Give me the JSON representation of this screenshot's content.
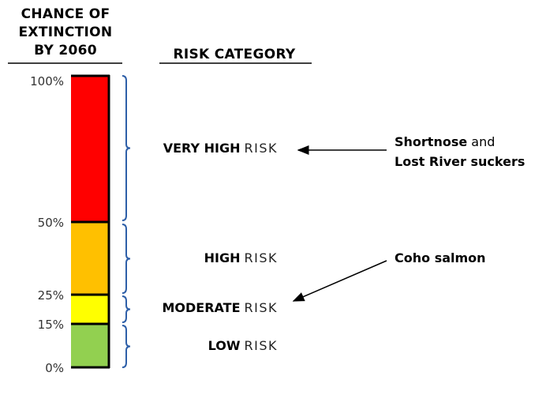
{
  "left_header": [
    "CHANCE OF",
    "EXTINCTION",
    "BY 2060"
  ],
  "right_header": "RISK CATEGORY",
  "ticks": [
    "100%",
    "50%",
    "25%",
    "15%",
    "0%"
  ],
  "segments": [
    {
      "from": 50,
      "to": 100,
      "color": "#FF0000",
      "category_bold": "VERY HIGH",
      "category_light": "RISK"
    },
    {
      "from": 25,
      "to": 50,
      "color": "#FFC000",
      "category_bold": "HIGH",
      "category_light": "RISK"
    },
    {
      "from": 15,
      "to": 25,
      "color": "#FFFF00",
      "category_bold": "MODERATE",
      "category_light": "RISK"
    },
    {
      "from": 0,
      "to": 15,
      "color": "#92D050",
      "category_bold": "LOW",
      "category_light": "RISK"
    }
  ],
  "brace_color": "#2E5FA8",
  "annotations": [
    {
      "line1_bold": "Shortnose",
      "line1_rest": " and",
      "line2_bold": "Lost River suckers",
      "points_to": "VERY HIGH"
    },
    {
      "line1_bold": "Coho salmon",
      "line1_rest": "",
      "line2_bold": "",
      "points_to": "MODERATE"
    }
  ]
}
